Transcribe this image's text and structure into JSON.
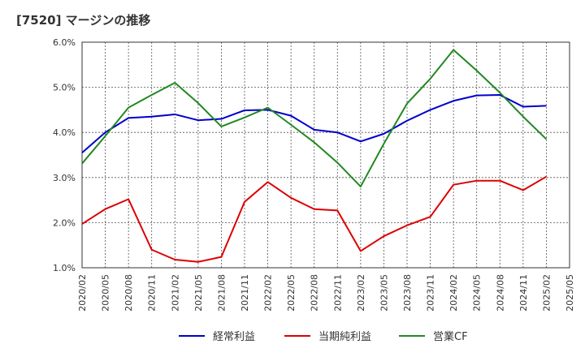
{
  "chart_data": {
    "type": "line",
    "title": "[7520]  マージンの推移",
    "x": [
      "2020/02",
      "2020/05",
      "2020/08",
      "2020/11",
      "2021/02",
      "2021/05",
      "2021/08",
      "2021/11",
      "2022/02",
      "2022/05",
      "2022/08",
      "2022/11",
      "2023/02",
      "2023/05",
      "2023/08",
      "2023/11",
      "2024/02",
      "2024/05",
      "2024/08",
      "2024/11",
      "2025/02",
      "2025/05"
    ],
    "ylim": [
      1.0,
      6.0
    ],
    "yticks": [
      "1.0%",
      "2.0%",
      "3.0%",
      "4.0%",
      "5.0%",
      "6.0%"
    ],
    "grid": true,
    "legend_position": "bottom",
    "series": [
      {
        "name": "経常利益",
        "color": "#0000cc",
        "values": [
          3.55,
          4.0,
          4.32,
          4.35,
          4.4,
          4.27,
          4.3,
          4.49,
          4.5,
          4.37,
          4.06,
          4.0,
          3.8,
          3.97,
          4.26,
          4.5,
          4.7,
          4.82,
          4.83,
          4.57,
          4.59,
          null
        ]
      },
      {
        "name": "当期純利益",
        "color": "#dd0000",
        "values": [
          1.97,
          2.3,
          2.52,
          1.4,
          1.18,
          1.13,
          1.24,
          2.46,
          2.9,
          2.55,
          2.3,
          2.27,
          1.37,
          1.7,
          1.94,
          2.13,
          2.84,
          2.93,
          2.93,
          2.72,
          3.02,
          null
        ]
      },
      {
        "name": "営業CF",
        "color": "#228822",
        "values": [
          3.31,
          3.92,
          4.55,
          4.83,
          5.1,
          4.65,
          4.13,
          4.33,
          4.55,
          4.17,
          3.78,
          3.33,
          2.8,
          3.75,
          4.64,
          5.19,
          5.83,
          5.37,
          4.88,
          4.35,
          3.85,
          null
        ]
      }
    ]
  }
}
